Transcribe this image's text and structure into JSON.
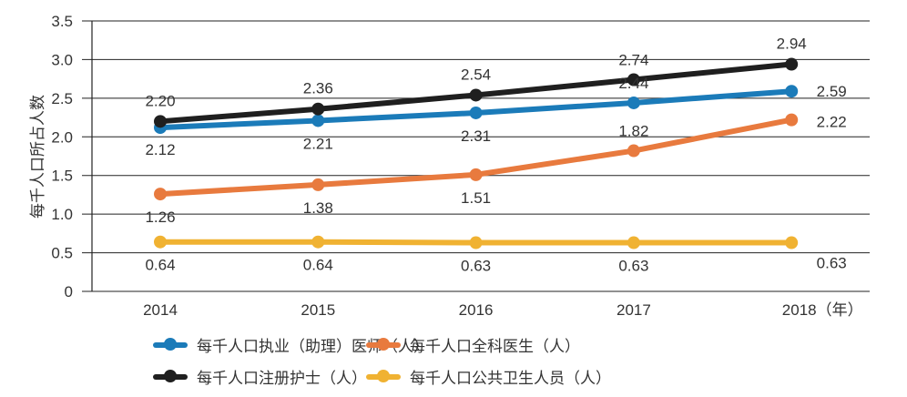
{
  "chart_data": {
    "type": "line",
    "categories": [
      "2014",
      "2015",
      "2016",
      "2017",
      "2018（年）"
    ],
    "x": [
      2014,
      2015,
      2016,
      2017,
      2018
    ],
    "ylabel": "每千人口所占人数",
    "ylim": [
      0,
      3.5
    ],
    "yticks": [
      "0",
      "0.5",
      "1.0",
      "1.5",
      "2.0",
      "2.5",
      "3.0",
      "3.5"
    ],
    "grid": true,
    "legend_position": "bottom",
    "series": [
      {
        "name": "每千人口执业（助理）医师（人）",
        "color": "#1b7bb9",
        "values": [
          2.12,
          2.21,
          2.31,
          2.44,
          2.59
        ],
        "labels": [
          "2.12",
          "2.21",
          "2.31",
          "2.44",
          "2.59"
        ]
      },
      {
        "name": "每千人口全科医生（人）",
        "color": "#e87a3e",
        "values": [
          1.26,
          1.38,
          1.51,
          1.82,
          2.22
        ],
        "labels": [
          "1.26",
          "1.38",
          "1.51",
          "1.82",
          "2.22"
        ]
      },
      {
        "name": "每千人口注册护士（人）",
        "color": "#1f1f1f",
        "values": [
          2.2,
          2.36,
          2.54,
          2.74,
          2.94
        ],
        "labels": [
          "2.20",
          "2.36",
          "2.54",
          "2.74",
          "2.94"
        ]
      },
      {
        "name": "每千人口公共卫生人员（人）",
        "color": "#f0b232",
        "values": [
          0.64,
          0.64,
          0.63,
          0.63,
          0.63
        ],
        "labels": [
          "0.64",
          "0.64",
          "0.63",
          "0.63",
          "0.63"
        ]
      }
    ]
  }
}
